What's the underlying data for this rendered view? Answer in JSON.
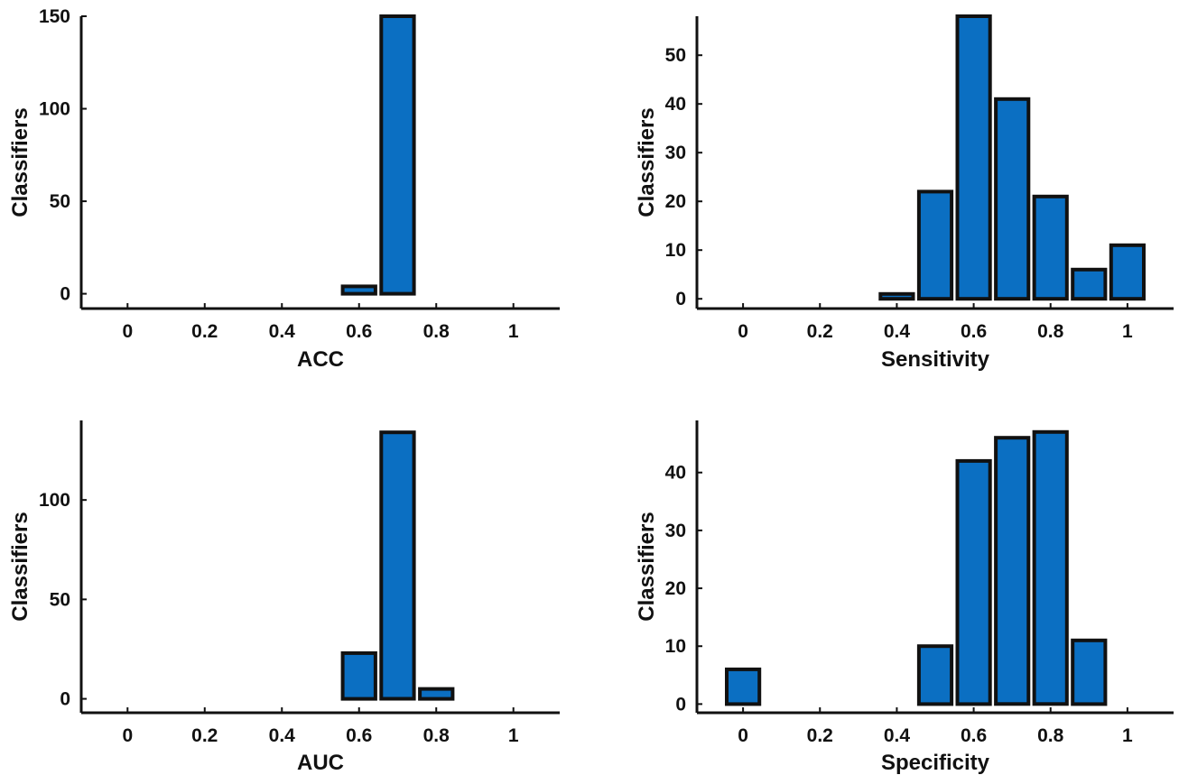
{
  "chart_data": [
    {
      "type": "bar",
      "xlabel": "ACC",
      "ylabel": "Classifiers",
      "xlim": [
        -0.12,
        1.12
      ],
      "ylim": [
        -8,
        150
      ],
      "xticks": [
        0,
        0.2,
        0.4,
        0.6,
        0.8,
        1
      ],
      "xtick_labels": [
        "0",
        "0.2",
        "0.4",
        "0.6",
        "0.8",
        "1"
      ],
      "yticks": [
        0,
        50,
        100,
        150
      ],
      "ytick_labels": [
        "0",
        "50",
        "100",
        "150"
      ],
      "bar_width": 0.085,
      "x": [
        0.6,
        0.7
      ],
      "values": [
        4,
        150
      ],
      "color": "#0b6fc2",
      "edge_color": "#111111",
      "grid": false
    },
    {
      "type": "bar",
      "xlabel": "Sensitivity",
      "ylabel": "Classifiers",
      "xlim": [
        -0.12,
        1.12
      ],
      "ylim": [
        -2,
        58
      ],
      "xticks": [
        0,
        0.2,
        0.4,
        0.6,
        0.8,
        1
      ],
      "xtick_labels": [
        "0",
        "0.2",
        "0.4",
        "0.6",
        "0.8",
        "1"
      ],
      "yticks": [
        0,
        10,
        20,
        30,
        40,
        50
      ],
      "ytick_labels": [
        "0",
        "10",
        "20",
        "30",
        "40",
        "50"
      ],
      "bar_width": 0.085,
      "x": [
        0.4,
        0.5,
        0.6,
        0.7,
        0.8,
        0.9,
        1.0
      ],
      "values": [
        1,
        22,
        58,
        41,
        21,
        6,
        11
      ],
      "color": "#0b6fc2",
      "edge_color": "#111111",
      "grid": false
    },
    {
      "type": "bar",
      "xlabel": "AUC",
      "ylabel": "Classifiers",
      "xlim": [
        -0.12,
        1.12
      ],
      "ylim": [
        -7,
        140
      ],
      "xticks": [
        0,
        0.2,
        0.4,
        0.6,
        0.8,
        1
      ],
      "xtick_labels": [
        "0",
        "0.2",
        "0.4",
        "0.6",
        "0.8",
        "1"
      ],
      "yticks": [
        0,
        50,
        100
      ],
      "ytick_labels": [
        "0",
        "50",
        "100"
      ],
      "bar_width": 0.085,
      "x": [
        0.6,
        0.7,
        0.8
      ],
      "values": [
        23,
        134,
        5
      ],
      "color": "#0b6fc2",
      "edge_color": "#111111",
      "grid": false
    },
    {
      "type": "bar",
      "xlabel": "Specificity",
      "ylabel": "Classifiers",
      "xlim": [
        -0.12,
        1.12
      ],
      "ylim": [
        -1.5,
        49
      ],
      "xticks": [
        0,
        0.2,
        0.4,
        0.6,
        0.8,
        1
      ],
      "xtick_labels": [
        "0",
        "0.2",
        "0.4",
        "0.6",
        "0.8",
        "1"
      ],
      "yticks": [
        0,
        10,
        20,
        30,
        40
      ],
      "ytick_labels": [
        "0",
        "10",
        "20",
        "30",
        "40"
      ],
      "bar_width": 0.085,
      "x": [
        0.0,
        0.5,
        0.6,
        0.7,
        0.8,
        0.9
      ],
      "values": [
        6,
        10,
        42,
        46,
        47,
        11
      ],
      "color": "#0b6fc2",
      "edge_color": "#111111",
      "grid": false
    }
  ]
}
